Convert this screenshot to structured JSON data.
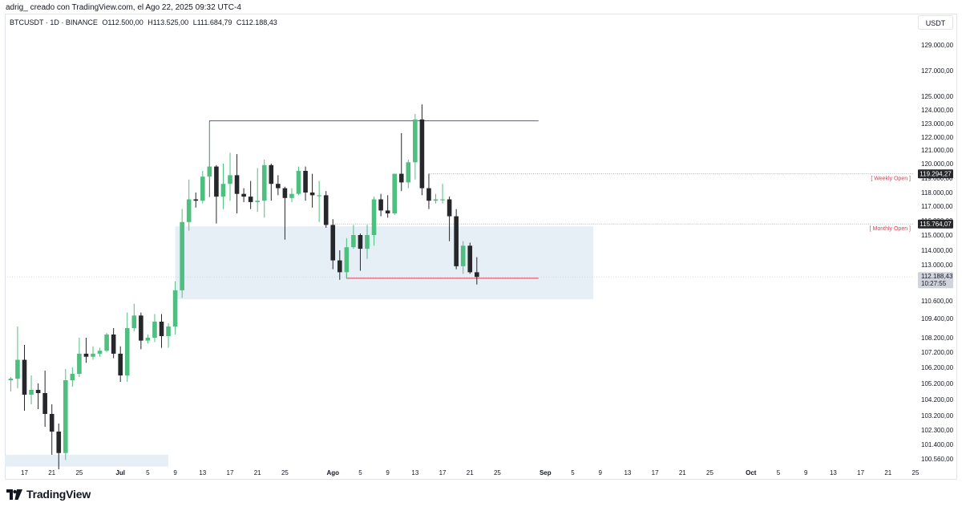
{
  "credit": "adrig_ creado con TradingView.com, el Ago 22, 2025 09:32 UTC-4",
  "header": {
    "symbol": "BTCUSDT · 1D · BINANCE",
    "open": "O112.500,00",
    "high": "H113.525,00",
    "low": "L111.684,79",
    "close": "C112.188,43"
  },
  "currency": "USDT",
  "brand": "TradingView",
  "colors": {
    "up": "#4fbf80",
    "down": "#26272b",
    "zone": "#e6eef6",
    "annotation": "#e8374a"
  },
  "chart_data": {
    "type": "candlestick",
    "symbol": "BTCUSDT",
    "interval": "1D",
    "ylim": [
      100000,
      130200
    ],
    "y_ticks": [
      {
        "v": 129000,
        "l": "129.000,00"
      },
      {
        "v": 127000,
        "l": "127.000,00"
      },
      {
        "v": 125000,
        "l": "125.000,00"
      },
      {
        "v": 124000,
        "l": "124.000,00"
      },
      {
        "v": 123000,
        "l": "123.000,00"
      },
      {
        "v": 122000,
        "l": "122.000,00"
      },
      {
        "v": 121000,
        "l": "121.000,00"
      },
      {
        "v": 120000,
        "l": "120.000,00"
      },
      {
        "v": 119000,
        "l": "119.000,00"
      },
      {
        "v": 118000,
        "l": "118.000,00"
      },
      {
        "v": 117000,
        "l": "117.000,00"
      },
      {
        "v": 116000,
        "l": "116.000,00"
      },
      {
        "v": 115000,
        "l": "115.000,00"
      },
      {
        "v": 114000,
        "l": "114.000,00"
      },
      {
        "v": 113000,
        "l": "113.000,00"
      },
      {
        "v": 110600,
        "l": "110.600,00"
      },
      {
        "v": 109400,
        "l": "109.400,00"
      },
      {
        "v": 108200,
        "l": "108.200,00"
      },
      {
        "v": 107200,
        "l": "107.200,00"
      },
      {
        "v": 106200,
        "l": "106.200,00"
      },
      {
        "v": 105200,
        "l": "105.200,00"
      },
      {
        "v": 104200,
        "l": "104.200,00"
      },
      {
        "v": 103200,
        "l": "103.200,00"
      },
      {
        "v": 102300,
        "l": "102.300,00"
      },
      {
        "v": 101400,
        "l": "101.400,00"
      },
      {
        "v": 100560,
        "l": "100.560,00"
      }
    ],
    "x_ticks": [
      {
        "d": "2025-06-17",
        "l": "17"
      },
      {
        "d": "2025-06-21",
        "l": "21"
      },
      {
        "d": "2025-06-25",
        "l": "25"
      },
      {
        "d": "2025-07-01",
        "l": "Jul",
        "bold": true
      },
      {
        "d": "2025-07-05",
        "l": "5"
      },
      {
        "d": "2025-07-09",
        "l": "9"
      },
      {
        "d": "2025-07-13",
        "l": "13"
      },
      {
        "d": "2025-07-17",
        "l": "17"
      },
      {
        "d": "2025-07-21",
        "l": "21"
      },
      {
        "d": "2025-07-25",
        "l": "25"
      },
      {
        "d": "2025-08-01",
        "l": "Ago",
        "bold": true
      },
      {
        "d": "2025-08-05",
        "l": "5"
      },
      {
        "d": "2025-08-09",
        "l": "9"
      },
      {
        "d": "2025-08-13",
        "l": "13"
      },
      {
        "d": "2025-08-17",
        "l": "17"
      },
      {
        "d": "2025-08-21",
        "l": "21"
      },
      {
        "d": "2025-08-25",
        "l": "25"
      },
      {
        "d": "2025-09-01",
        "l": "Sep",
        "bold": true
      },
      {
        "d": "2025-09-05",
        "l": "5"
      },
      {
        "d": "2025-09-09",
        "l": "9"
      },
      {
        "d": "2025-09-13",
        "l": "13"
      },
      {
        "d": "2025-09-17",
        "l": "17"
      },
      {
        "d": "2025-09-21",
        "l": "21"
      },
      {
        "d": "2025-09-25",
        "l": "25"
      },
      {
        "d": "2025-10-01",
        "l": "Oct",
        "bold": true
      },
      {
        "d": "2025-10-05",
        "l": "5"
      },
      {
        "d": "2025-10-09",
        "l": "9"
      },
      {
        "d": "2025-10-13",
        "l": "13"
      },
      {
        "d": "2025-10-17",
        "l": "17"
      },
      {
        "d": "2025-10-21",
        "l": "21"
      },
      {
        "d": "2025-10-25",
        "l": "25"
      }
    ],
    "candles": [
      {
        "d": "2025-06-15",
        "o": 105400,
        "h": 105600,
        "l": 104700,
        "c": 105500
      },
      {
        "d": "2025-06-16",
        "o": 105500,
        "h": 108900,
        "l": 104900,
        "c": 106700
      },
      {
        "d": "2025-06-17",
        "o": 106700,
        "h": 107700,
        "l": 103500,
        "c": 104500
      },
      {
        "d": "2025-06-18",
        "o": 104500,
        "h": 105700,
        "l": 103900,
        "c": 104800
      },
      {
        "d": "2025-06-19",
        "o": 104800,
        "h": 105200,
        "l": 103600,
        "c": 104600
      },
      {
        "d": "2025-06-20",
        "o": 104600,
        "h": 106000,
        "l": 102500,
        "c": 103300
      },
      {
        "d": "2025-06-21",
        "o": 103300,
        "h": 103900,
        "l": 100800,
        "c": 102200
      },
      {
        "d": "2025-06-22",
        "o": 102200,
        "h": 102700,
        "l": 99500,
        "c": 100900
      },
      {
        "d": "2025-06-23",
        "o": 100900,
        "h": 106100,
        "l": 100500,
        "c": 105400
      },
      {
        "d": "2025-06-24",
        "o": 105400,
        "h": 106200,
        "l": 105000,
        "c": 105800
      },
      {
        "d": "2025-06-25",
        "o": 105800,
        "h": 108200,
        "l": 105600,
        "c": 107100
      },
      {
        "d": "2025-06-26",
        "o": 107100,
        "h": 108200,
        "l": 106500,
        "c": 106900
      },
      {
        "d": "2025-06-27",
        "o": 106900,
        "h": 107600,
        "l": 106700,
        "c": 107100
      },
      {
        "d": "2025-06-28",
        "o": 107100,
        "h": 107500,
        "l": 106900,
        "c": 107300
      },
      {
        "d": "2025-06-29",
        "o": 107300,
        "h": 108500,
        "l": 107200,
        "c": 108400
      },
      {
        "d": "2025-06-30",
        "o": 108400,
        "h": 108800,
        "l": 106800,
        "c": 107100
      },
      {
        "d": "2025-07-01",
        "o": 107100,
        "h": 107600,
        "l": 105300,
        "c": 105700
      },
      {
        "d": "2025-07-02",
        "o": 105700,
        "h": 109800,
        "l": 105300,
        "c": 108800
      },
      {
        "d": "2025-07-03",
        "o": 108800,
        "h": 110400,
        "l": 108600,
        "c": 109600
      },
      {
        "d": "2025-07-04",
        "o": 109600,
        "h": 109800,
        "l": 107400,
        "c": 108000
      },
      {
        "d": "2025-07-05",
        "o": 108000,
        "h": 108400,
        "l": 107800,
        "c": 108200
      },
      {
        "d": "2025-07-06",
        "o": 108200,
        "h": 109700,
        "l": 107900,
        "c": 109200
      },
      {
        "d": "2025-07-07",
        "o": 109200,
        "h": 109700,
        "l": 107500,
        "c": 108300
      },
      {
        "d": "2025-07-08",
        "o": 108300,
        "h": 109100,
        "l": 107500,
        "c": 108900
      },
      {
        "d": "2025-07-09",
        "o": 108900,
        "h": 111900,
        "l": 108400,
        "c": 111300
      },
      {
        "d": "2025-07-10",
        "o": 111300,
        "h": 116800,
        "l": 110800,
        "c": 115900
      },
      {
        "d": "2025-07-11",
        "o": 115900,
        "h": 118900,
        "l": 115300,
        "c": 117500
      },
      {
        "d": "2025-07-12",
        "o": 117500,
        "h": 118000,
        "l": 116900,
        "c": 117400
      },
      {
        "d": "2025-07-13",
        "o": 117400,
        "h": 119500,
        "l": 117200,
        "c": 119100
      },
      {
        "d": "2025-07-14",
        "o": 119100,
        "h": 123100,
        "l": 118900,
        "c": 119800
      },
      {
        "d": "2025-07-15",
        "o": 119800,
        "h": 119900,
        "l": 115800,
        "c": 117700
      },
      {
        "d": "2025-07-16",
        "o": 117700,
        "h": 120000,
        "l": 116800,
        "c": 118600
      },
      {
        "d": "2025-07-17",
        "o": 118600,
        "h": 120800,
        "l": 117400,
        "c": 119200
      },
      {
        "d": "2025-07-18",
        "o": 119200,
        "h": 120700,
        "l": 116500,
        "c": 117900
      },
      {
        "d": "2025-07-19",
        "o": 117900,
        "h": 118300,
        "l": 117300,
        "c": 117700
      },
      {
        "d": "2025-07-20",
        "o": 117700,
        "h": 118800,
        "l": 116800,
        "c": 117300
      },
      {
        "d": "2025-07-21",
        "o": 117300,
        "h": 119700,
        "l": 116600,
        "c": 117400
      },
      {
        "d": "2025-07-22",
        "o": 117400,
        "h": 120300,
        "l": 116200,
        "c": 119900
      },
      {
        "d": "2025-07-23",
        "o": 119900,
        "h": 120000,
        "l": 117400,
        "c": 118600
      },
      {
        "d": "2025-07-24",
        "o": 118600,
        "h": 119200,
        "l": 117800,
        "c": 118300
      },
      {
        "d": "2025-07-25",
        "o": 118300,
        "h": 118400,
        "l": 114700,
        "c": 117600
      },
      {
        "d": "2025-07-26",
        "o": 117600,
        "h": 118300,
        "l": 117300,
        "c": 117900
      },
      {
        "d": "2025-07-27",
        "o": 117900,
        "h": 119800,
        "l": 117800,
        "c": 119500
      },
      {
        "d": "2025-07-28",
        "o": 119500,
        "h": 119800,
        "l": 117400,
        "c": 118000
      },
      {
        "d": "2025-07-29",
        "o": 118000,
        "h": 119300,
        "l": 116900,
        "c": 117800
      },
      {
        "d": "2025-07-30",
        "o": 117800,
        "h": 118800,
        "l": 115900,
        "c": 117800
      },
      {
        "d": "2025-07-31",
        "o": 117800,
        "h": 118100,
        "l": 115500,
        "c": 115700
      },
      {
        "d": "2025-08-01",
        "o": 115700,
        "h": 116100,
        "l": 112700,
        "c": 113300
      },
      {
        "d": "2025-08-02",
        "o": 113300,
        "h": 114000,
        "l": 112000,
        "c": 112500
      },
      {
        "d": "2025-08-03",
        "o": 112500,
        "h": 114800,
        "l": 112100,
        "c": 114200
      },
      {
        "d": "2025-08-04",
        "o": 114200,
        "h": 115700,
        "l": 114100,
        "c": 115000
      },
      {
        "d": "2025-08-05",
        "o": 115000,
        "h": 115100,
        "l": 112600,
        "c": 114100
      },
      {
        "d": "2025-08-06",
        "o": 114100,
        "h": 115700,
        "l": 113400,
        "c": 115000
      },
      {
        "d": "2025-08-07",
        "o": 115000,
        "h": 117700,
        "l": 114300,
        "c": 117500
      },
      {
        "d": "2025-08-08",
        "o": 117500,
        "h": 117900,
        "l": 116300,
        "c": 116700
      },
      {
        "d": "2025-08-09",
        "o": 116700,
        "h": 117800,
        "l": 116200,
        "c": 116500
      },
      {
        "d": "2025-08-10",
        "o": 116500,
        "h": 119300,
        "l": 116400,
        "c": 119300
      },
      {
        "d": "2025-08-11",
        "o": 119300,
        "h": 122300,
        "l": 118100,
        "c": 118700
      },
      {
        "d": "2025-08-12",
        "o": 118700,
        "h": 120300,
        "l": 118300,
        "c": 120100
      },
      {
        "d": "2025-08-13",
        "o": 120100,
        "h": 123700,
        "l": 118900,
        "c": 123300
      },
      {
        "d": "2025-08-14",
        "o": 123300,
        "h": 124400,
        "l": 117800,
        "c": 118300
      },
      {
        "d": "2025-08-15",
        "o": 118300,
        "h": 119300,
        "l": 116800,
        "c": 117400
      },
      {
        "d": "2025-08-16",
        "o": 117400,
        "h": 117900,
        "l": 117200,
        "c": 117500
      },
      {
        "d": "2025-08-17",
        "o": 117500,
        "h": 118600,
        "l": 117200,
        "c": 117500
      },
      {
        "d": "2025-08-18",
        "o": 117500,
        "h": 117700,
        "l": 114600,
        "c": 116300
      },
      {
        "d": "2025-08-19",
        "o": 116300,
        "h": 116800,
        "l": 112700,
        "c": 112900
      },
      {
        "d": "2025-08-20",
        "o": 112900,
        "h": 114600,
        "l": 112400,
        "c": 114300
      },
      {
        "d": "2025-08-21",
        "o": 114300,
        "h": 114500,
        "l": 112400,
        "c": 112500
      },
      {
        "d": "2025-08-22",
        "o": 112500,
        "h": 113525,
        "l": 111684.79,
        "c": 112188.43
      }
    ],
    "annotations": {
      "zone_top": 115600,
      "zone_bottom": 110700,
      "zone_start": "2025-07-09",
      "zone_end": "2025-09-08",
      "low_zone_top": 100800,
      "low_zone_bottom": 100150,
      "low_zone_start": "2025-06-14",
      "low_zone_end": "2025-07-08",
      "high_line": 123200,
      "high_line_start": "2025-07-14",
      "high_line_end": "2025-08-31",
      "support_line": 112100,
      "support_line_start": "2025-08-03",
      "support_line_end": "2025-08-31",
      "weekly_open": 119294.27,
      "weekly_open_label": "[ Weekly Open ]",
      "weekly_open_price": "119.294,27",
      "monthly_open": 115764.07,
      "monthly_open_label": "[ Monthly Open ]",
      "monthly_open_price": "115.764,07",
      "last_price_label": "112.188,43",
      "countdown": "10:27:55"
    }
  }
}
